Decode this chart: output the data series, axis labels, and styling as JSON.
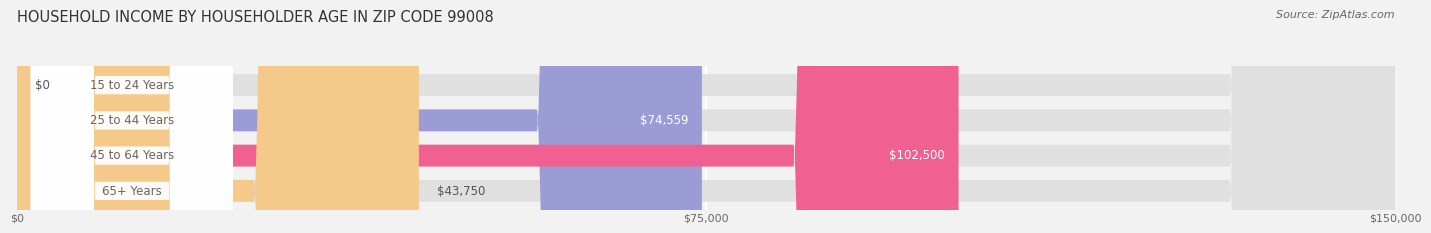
{
  "title": "HOUSEHOLD INCOME BY HOUSEHOLDER AGE IN ZIP CODE 99008",
  "source": "Source: ZipAtlas.com",
  "categories": [
    "15 to 24 Years",
    "25 to 44 Years",
    "45 to 64 Years",
    "65+ Years"
  ],
  "values": [
    0,
    74559,
    102500,
    43750
  ],
  "value_labels": [
    "$0",
    "$74,559",
    "$102,500",
    "$43,750"
  ],
  "bar_colors": [
    "#5ecfcf",
    "#9b9bd6",
    "#f06090",
    "#f5c98a"
  ],
  "background_color": "#f2f2f2",
  "bar_bg_color": "#e0e0e0",
  "xlim": [
    0,
    150000
  ],
  "xticks": [
    0,
    75000,
    150000
  ],
  "xticklabels": [
    "$0",
    "$75,000",
    "$150,000"
  ],
  "bar_height": 0.62,
  "label_color": "#666666",
  "title_color": "#333333",
  "value_label_inside_color": "#ffffff",
  "value_label_outside_color": "#555555",
  "inside_threshold": 55000
}
